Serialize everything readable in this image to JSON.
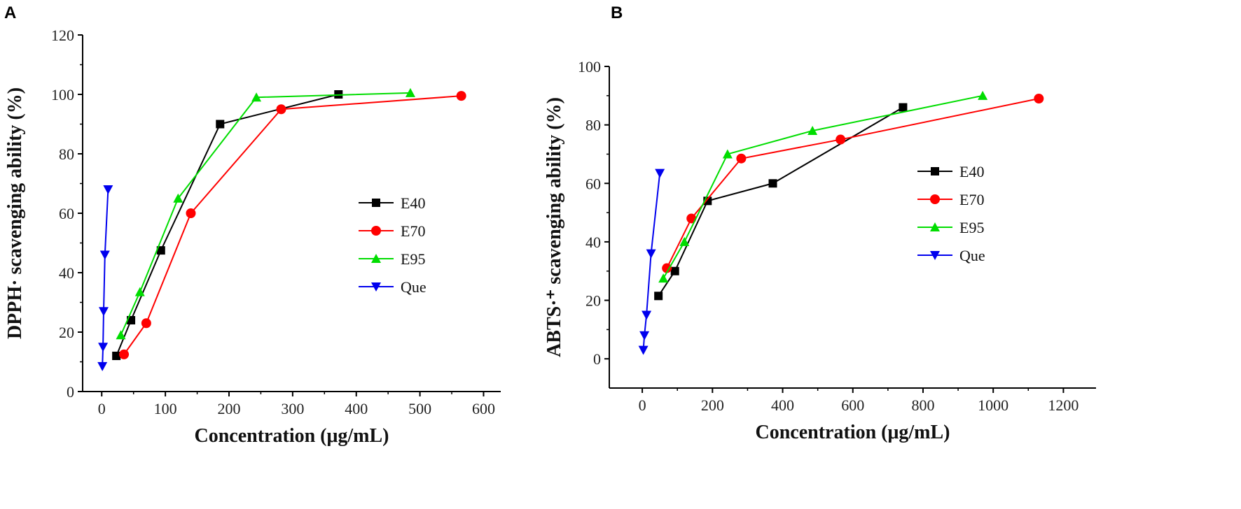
{
  "chart_data": [
    {
      "type": "line",
      "panel": "A",
      "xlabel": "Concentration (μg/mL)",
      "ylabel": "DPPH· scavenging ability (%)",
      "xlim": [
        -30,
        627
      ],
      "ylim": [
        0,
        120
      ],
      "xticks": [
        0,
        100,
        200,
        300,
        400,
        500,
        600
      ],
      "yticks": [
        0,
        20,
        40,
        60,
        80,
        100,
        120
      ],
      "legend_position": "right-center",
      "series": [
        {
          "name": "E40",
          "color": "#000000",
          "marker": "square",
          "x": [
            23,
            46,
            93,
            186,
            372
          ],
          "y": [
            12,
            24,
            47.5,
            90,
            100
          ]
        },
        {
          "name": "E70",
          "color": "#ff0000",
          "marker": "circle",
          "x": [
            35,
            70,
            140,
            282,
            565
          ],
          "y": [
            12.5,
            23,
            60,
            95,
            99.5
          ]
        },
        {
          "name": "E95",
          "color": "#00dd00",
          "marker": "triangle-up",
          "x": [
            30,
            60,
            120,
            243,
            485
          ],
          "y": [
            19,
            33.5,
            65,
            99,
            100.5
          ]
        },
        {
          "name": "Que",
          "color": "#0000ee",
          "marker": "triangle-down",
          "x": [
            1,
            2,
            3,
            5,
            10
          ],
          "y": [
            8.5,
            15,
            27,
            46,
            68
          ]
        }
      ]
    },
    {
      "type": "line",
      "panel": "B",
      "xlabel": "Concentration (μg/mL)",
      "ylabel": "ABTS·⁺ scavenging ability (%)",
      "xlim": [
        -94,
        1293
      ],
      "ylim": [
        -10,
        100
      ],
      "xticks": [
        0,
        200,
        400,
        600,
        800,
        1000,
        1200
      ],
      "yticks": [
        0,
        20,
        40,
        60,
        80,
        100
      ],
      "legend_position": "right-center",
      "series": [
        {
          "name": "E40",
          "color": "#000000",
          "marker": "square",
          "x": [
            46,
            93,
            186,
            372,
            743
          ],
          "y": [
            21.5,
            30,
            54,
            60,
            86
          ]
        },
        {
          "name": "E70",
          "color": "#ff0000",
          "marker": "circle",
          "x": [
            70,
            140,
            282,
            565,
            1130
          ],
          "y": [
            31,
            48,
            68.5,
            75,
            89
          ]
        },
        {
          "name": "E95",
          "color": "#00dd00",
          "marker": "triangle-up",
          "x": [
            60,
            120,
            243,
            485,
            970
          ],
          "y": [
            27.5,
            40,
            70,
            78,
            90
          ]
        },
        {
          "name": "Que",
          "color": "#0000ee",
          "marker": "triangle-down",
          "x": [
            3,
            6,
            12,
            25,
            50
          ],
          "y": [
            3,
            8,
            15,
            36,
            63.5
          ]
        }
      ]
    }
  ]
}
